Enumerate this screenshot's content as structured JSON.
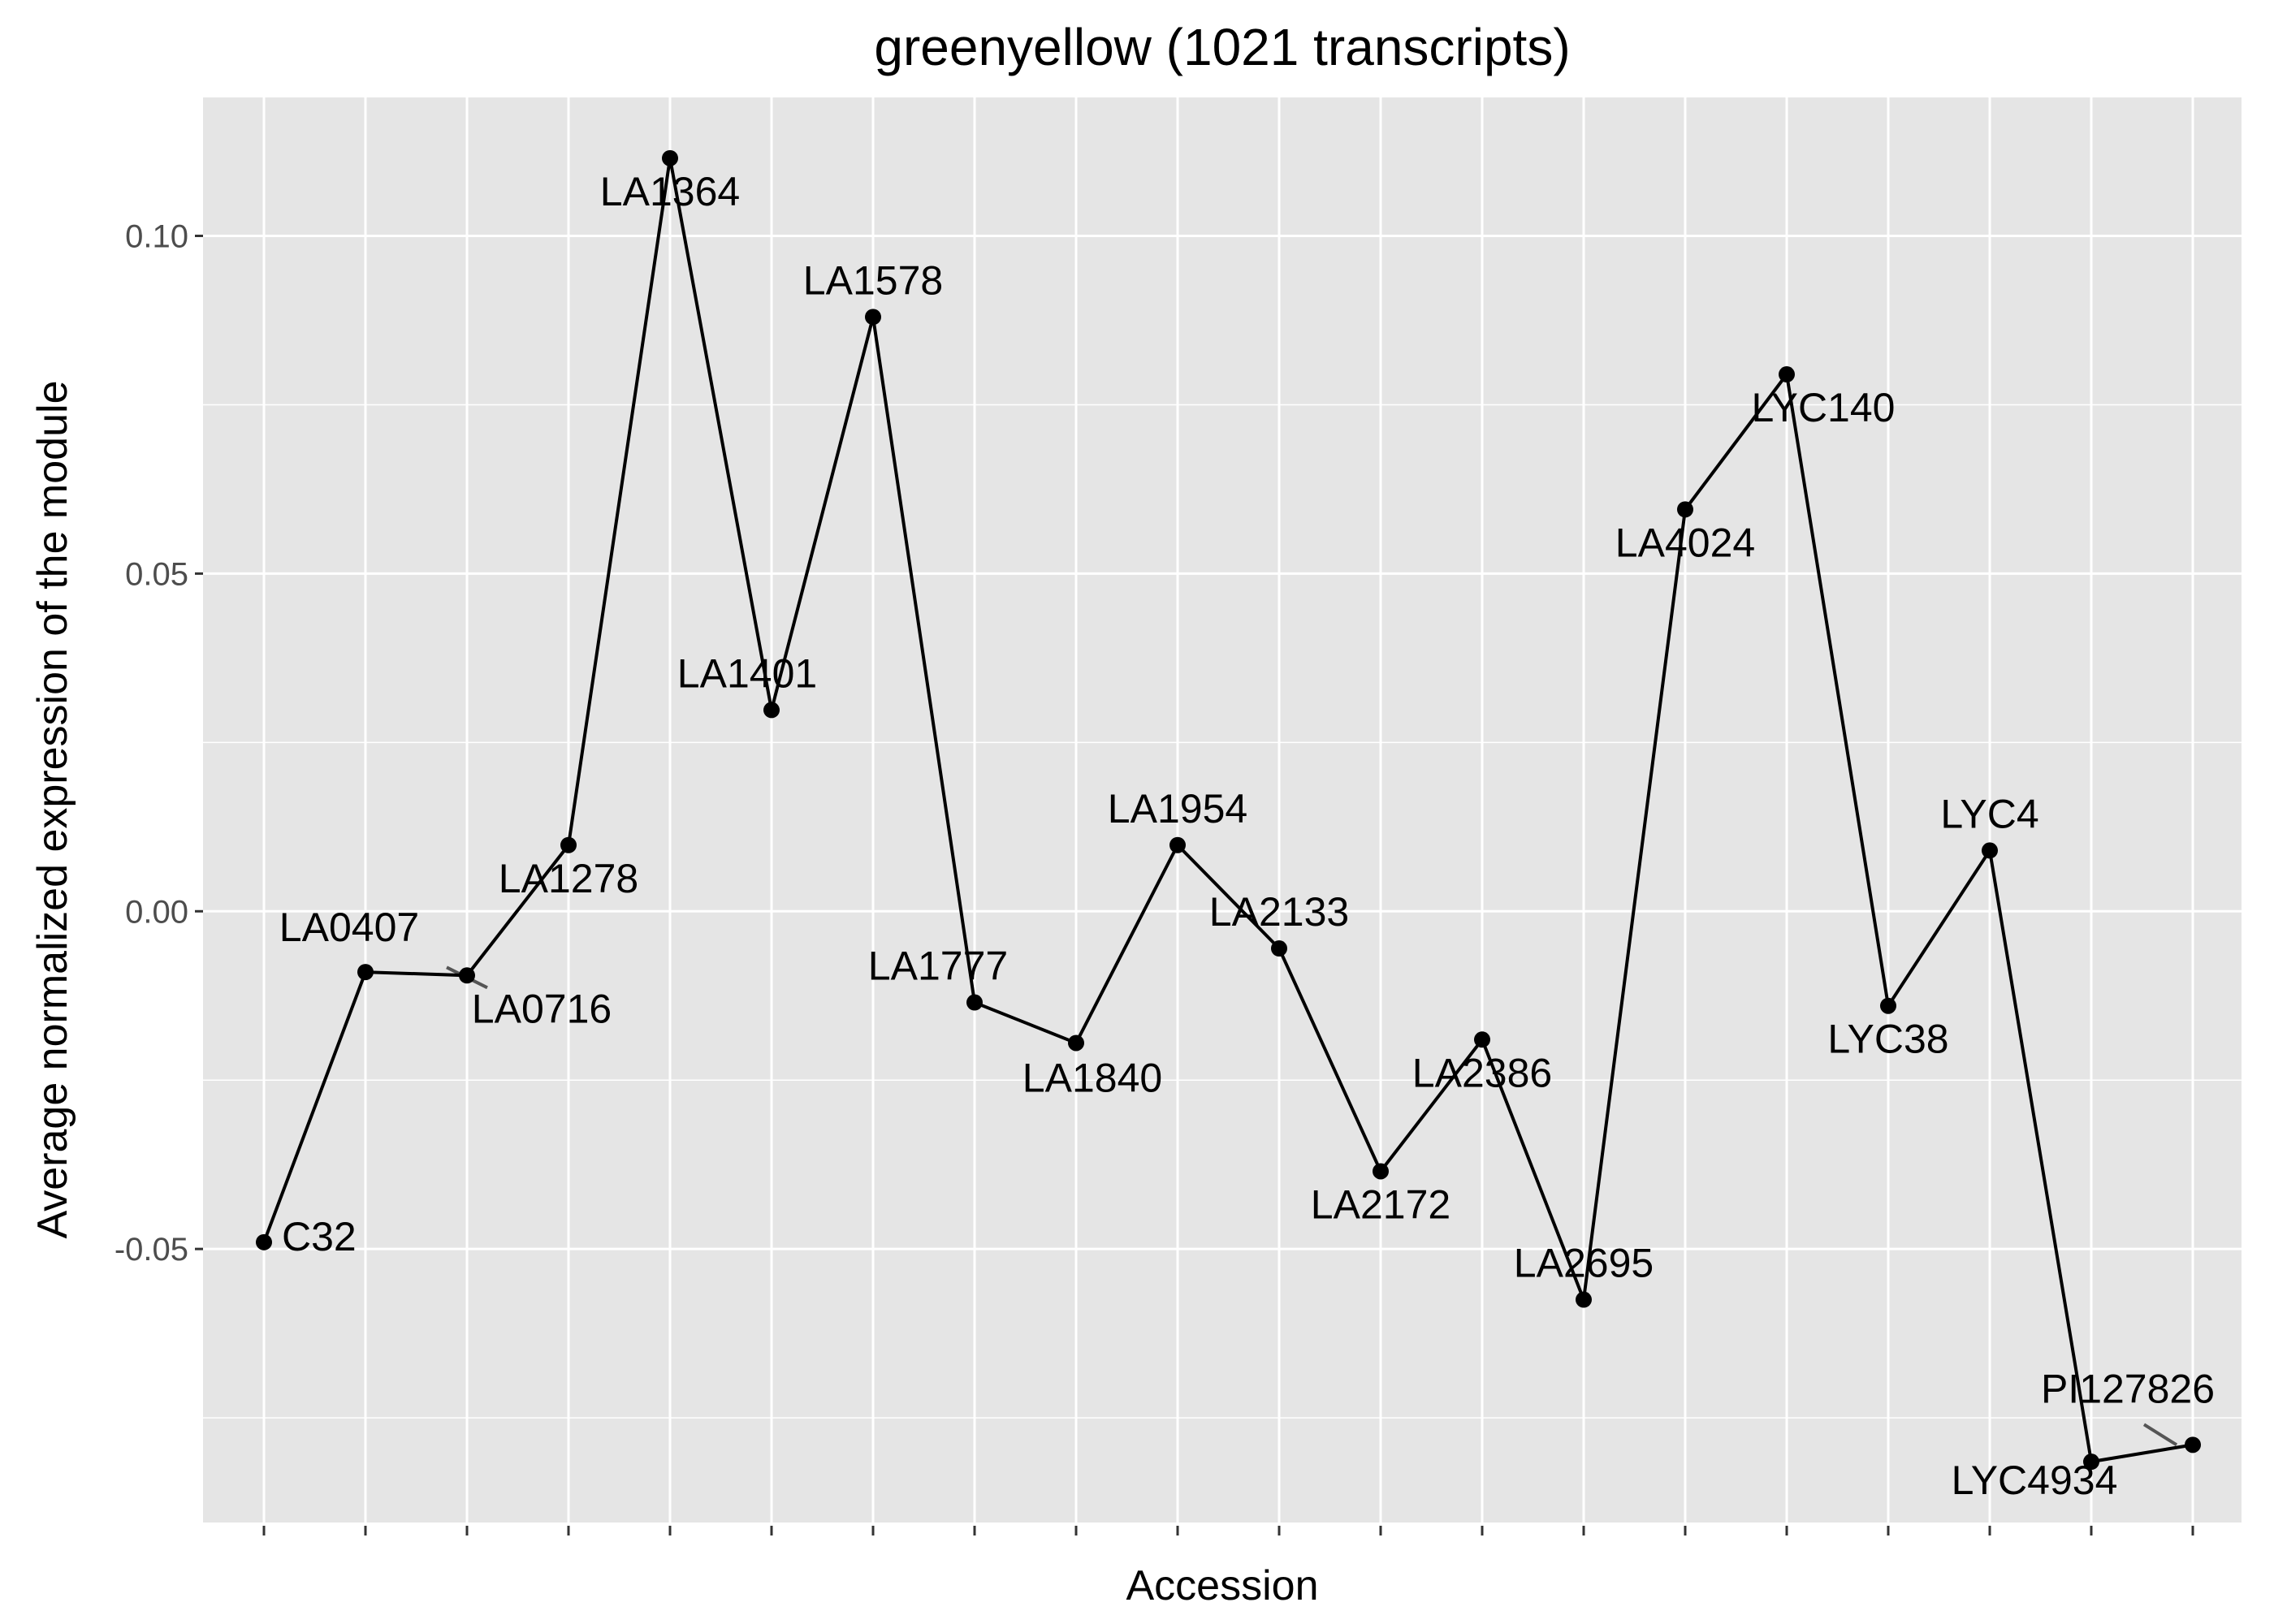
{
  "chart_data": {
    "type": "line",
    "title": "greenyellow (1021 transcripts)",
    "xlabel": "Accession",
    "ylabel": "Average normalized expression of the module",
    "ylim": [
      -0.0905,
      0.1205
    ],
    "yticks": [
      -0.05,
      0.0,
      0.05,
      0.1
    ],
    "ytick_labels": [
      "-0.05",
      "0.00",
      "0.05",
      "0.10"
    ],
    "grid": true,
    "x_tick_labels_visible": false,
    "colors": {
      "panel_background": "#e5e5e5",
      "grid": "#ffffff",
      "line": "#000000",
      "point": "#000000",
      "label_segment": "#555555"
    },
    "series": [
      {
        "categories": [
          "C32",
          "LA0407",
          "LA0716",
          "LA1278",
          "LA1364",
          "LA1401",
          "LA1578",
          "LA1777",
          "LA1840",
          "LA1954",
          "LA2133",
          "LA2172",
          "LA2386",
          "LA2695",
          "LA4024",
          "LYC140",
          "LYC38",
          "LYC4",
          "LYC4934",
          "PI127826"
        ],
        "values": [
          -0.049,
          -0.009,
          -0.0095,
          0.0098,
          0.1115,
          0.0298,
          0.088,
          -0.0135,
          -0.0195,
          0.0098,
          -0.0055,
          -0.0385,
          -0.019,
          -0.0575,
          0.0595,
          0.0795,
          -0.014,
          0.009,
          -0.0815,
          -0.079
        ]
      }
    ],
    "point_labels": [
      "C32",
      "LA0407",
      "LA0716",
      "LA1278",
      "LA1364",
      "LA1401",
      "LA1578",
      "LA1777",
      "LA1840",
      "LA1954",
      "LA2133",
      "LA2172",
      "LA2386",
      "LA2695",
      "LA4024",
      "LYC140",
      "LYC38",
      "LYC4",
      "LYC4934",
      "PI127826"
    ]
  }
}
